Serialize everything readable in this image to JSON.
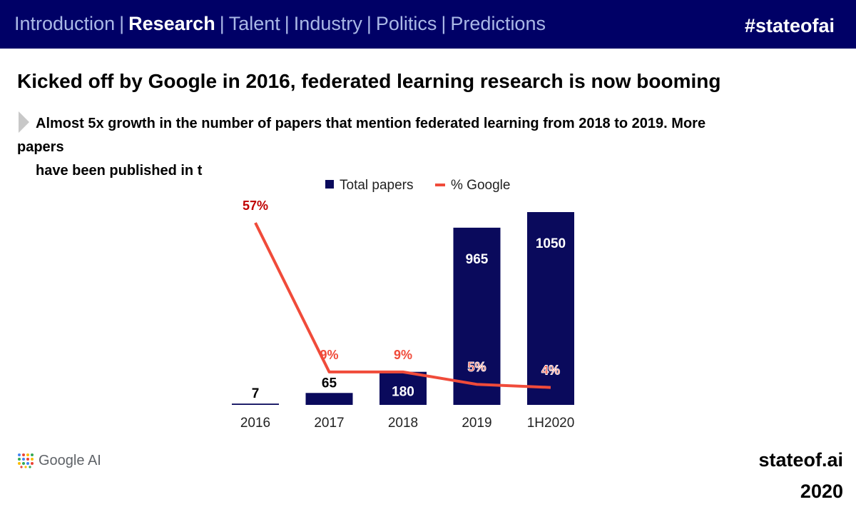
{
  "nav": {
    "items": [
      {
        "label": "Introduction",
        "active": false
      },
      {
        "label": "Research",
        "active": true
      },
      {
        "label": "Talent",
        "active": false
      },
      {
        "label": "Industry",
        "active": false
      },
      {
        "label": "Politics",
        "active": false
      },
      {
        "label": "Predictions",
        "active": false
      }
    ],
    "separator": "|",
    "hashtag": "#stateofai"
  },
  "slide": {
    "title": "Kicked off by Google in 2016, federated learning research is now booming",
    "subtitle_line1": "Almost 5x growth in the number of papers that mention federated learning from 2018 to 2019. More",
    "subtitle_line2": "papers",
    "subtitle_line3": "have been published in t"
  },
  "footer": {
    "logo_text": "Google AI",
    "brand_line1": "stateof.ai",
    "brand_line2": "2020"
  },
  "colors": {
    "navy": "#000066",
    "bar": "#0a0a5c",
    "line": "#f04b3a",
    "label_red": "#c00000"
  },
  "chart_data": {
    "type": "bar+line",
    "categories": [
      "2016",
      "2017",
      "2018",
      "2019",
      "1H2020"
    ],
    "legend": [
      "Total papers",
      "% Google"
    ],
    "legend_position": "top",
    "series": [
      {
        "name": "Total papers",
        "type": "bar",
        "values": [
          7,
          65,
          180,
          965,
          1050
        ],
        "labels": [
          "7",
          "65",
          "180",
          "965",
          "1050"
        ]
      },
      {
        "name": "% Google",
        "type": "line",
        "values": [
          57,
          9,
          9,
          5,
          4
        ],
        "labels": [
          "57%",
          "9%",
          "9%",
          "5%",
          "4%"
        ]
      }
    ],
    "bar_ylim": [
      0,
      1050
    ],
    "line_ylim": [
      0,
      57
    ]
  }
}
